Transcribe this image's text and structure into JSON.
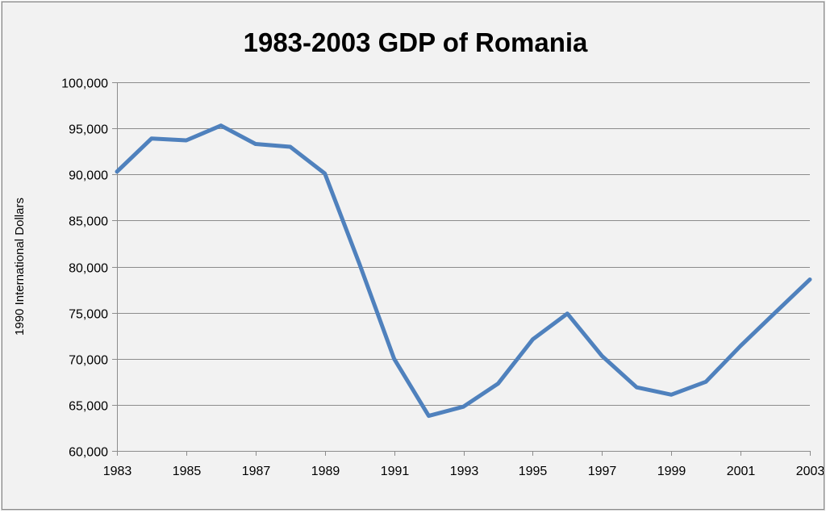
{
  "chart_data": {
    "type": "line",
    "title": "1983-2003 GDP of Romania",
    "xlabel": "",
    "ylabel": "1990 International Dollars",
    "x": [
      1983,
      1984,
      1985,
      1986,
      1987,
      1988,
      1989,
      1990,
      1991,
      1992,
      1993,
      1994,
      1995,
      1996,
      1997,
      1998,
      1999,
      2000,
      2001,
      2002,
      2003
    ],
    "x_tick_labels": [
      "1983",
      "1985",
      "1987",
      "1989",
      "1991",
      "1993",
      "1995",
      "1997",
      "1999",
      "2001",
      "2003"
    ],
    "y_tick_labels": [
      "60,000",
      "65,000",
      "70,000",
      "75,000",
      "80,000",
      "85,000",
      "90,000",
      "95,000",
      "100,000"
    ],
    "series": [
      {
        "values": [
          90300,
          93900,
          93700,
          95300,
          93300,
          93000,
          90100,
          80300,
          70000,
          63800,
          64800,
          67300,
          72100,
          74900,
          70300,
          66900,
          66100,
          67500,
          71400,
          75000,
          78600
        ]
      }
    ],
    "xlim": [
      1983,
      2003
    ],
    "ylim": [
      60000,
      100000
    ],
    "grid": true,
    "legend": "none",
    "colors": {
      "line": "#4f81bd",
      "grid": "#8c8c8c",
      "background": "#f2f2f2",
      "text": "#000000"
    }
  }
}
